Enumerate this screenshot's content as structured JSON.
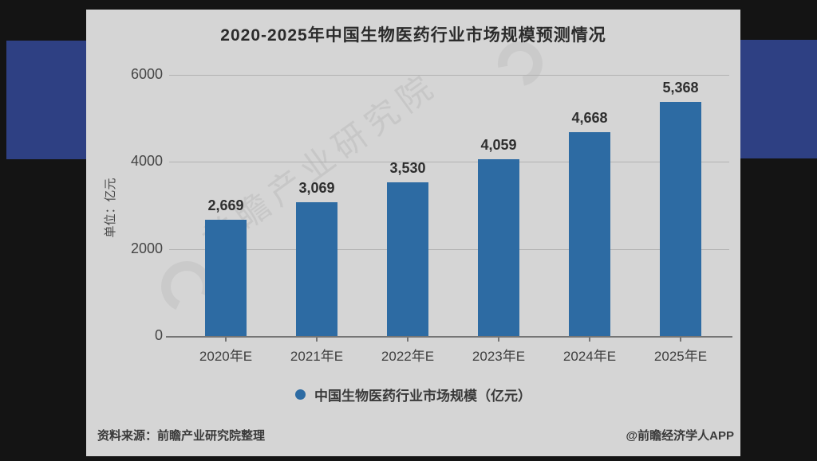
{
  "chart_data": {
    "type": "bar",
    "title": "2020-2025年中国生物医药行业市场规模预测情况",
    "unit_label": "单位：亿元",
    "categories": [
      "2020年E",
      "2021年E",
      "2022年E",
      "2023年E",
      "2024年E",
      "2025年E"
    ],
    "values": [
      2669,
      3069,
      3530,
      4059,
      4668,
      5368
    ],
    "value_labels": [
      "2,669",
      "3,069",
      "3,530",
      "4,059",
      "4,668",
      "5,368"
    ],
    "ylim": [
      0,
      6000
    ],
    "yticks": [
      0,
      2000,
      4000,
      6000
    ],
    "grid": true,
    "bar_color": "#2d6ba3",
    "legend_position": "bottom",
    "legend": [
      {
        "label": "中国生物医药行业市场规模（亿元）",
        "marker": "circle",
        "color": "#2d6ba3"
      }
    ]
  },
  "footer": {
    "source": "资料来源：前瞻产业研究院整理",
    "credit": "@前瞻经济学人APP"
  },
  "watermark": {
    "diagonal_text": "前瞻产业研究院"
  },
  "colors": {
    "page_bg": "#141414",
    "band": "#2e4083",
    "card_bg": "#d5d5d5",
    "bar": "#2d6ba3"
  }
}
